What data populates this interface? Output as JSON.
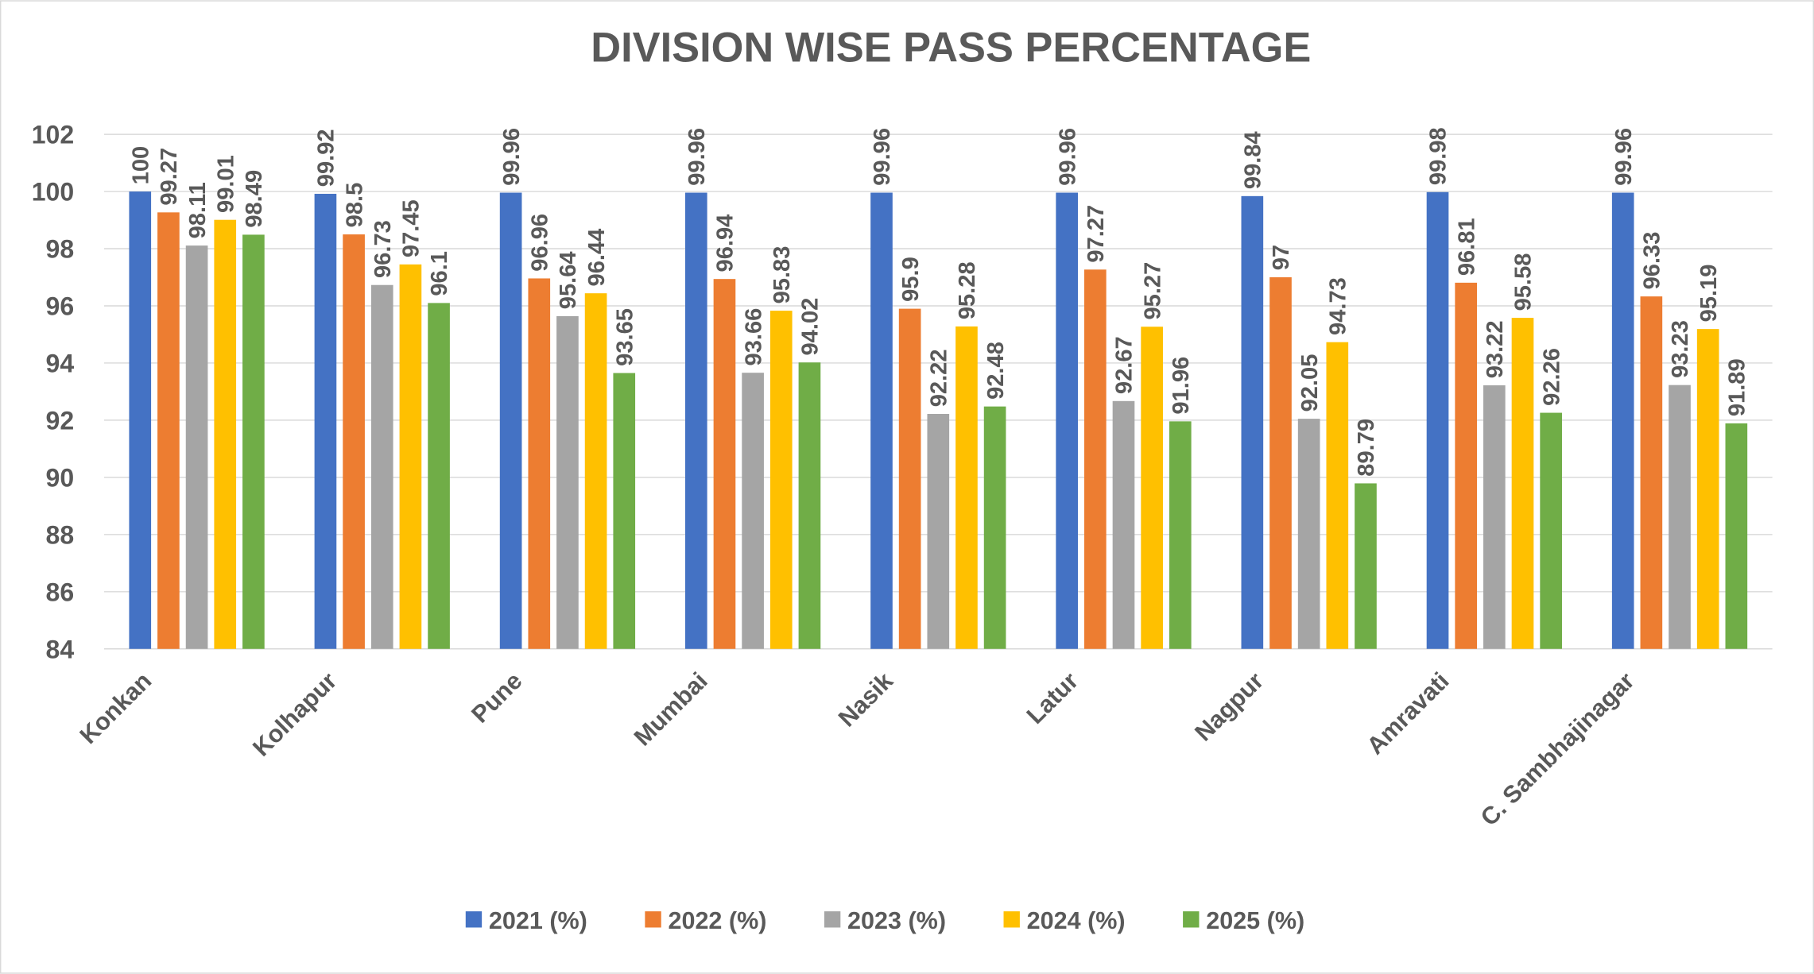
{
  "chart_data": {
    "type": "bar",
    "title": "DIVISION WISE PASS PERCENTAGE",
    "categories": [
      "Konkan",
      "Kolhapur",
      "Pune",
      "Mumbai",
      "Nasik",
      "Latur",
      "Nagpur",
      "Amravati",
      "C. Sambhajinagar"
    ],
    "series": [
      {
        "name": "2021 (%)",
        "color": "#4472c4",
        "values": [
          100,
          99.92,
          99.96,
          99.96,
          99.96,
          99.96,
          99.84,
          99.98,
          99.96
        ]
      },
      {
        "name": "2022 (%)",
        "color": "#ed7d31",
        "values": [
          99.27,
          98.5,
          96.96,
          96.94,
          95.9,
          97.27,
          97,
          96.81,
          96.33
        ]
      },
      {
        "name": "2023 (%)",
        "color": "#a5a5a5",
        "values": [
          98.11,
          96.73,
          95.64,
          93.66,
          92.22,
          92.67,
          92.05,
          93.22,
          93.23
        ]
      },
      {
        "name": "2024 (%)",
        "color": "#ffc000",
        "values": [
          99.01,
          97.45,
          96.44,
          95.83,
          95.28,
          95.27,
          94.73,
          95.58,
          95.19
        ]
      },
      {
        "name": "2025 (%)",
        "color": "#70ad47",
        "values": [
          98.49,
          96.1,
          93.65,
          94.02,
          92.48,
          91.96,
          89.79,
          92.26,
          91.89
        ]
      }
    ],
    "ylim": [
      84,
      102
    ],
    "yticks": [
      84,
      86,
      88,
      90,
      92,
      94,
      96,
      98,
      100,
      102
    ],
    "grid": true,
    "legend": "bottom"
  }
}
